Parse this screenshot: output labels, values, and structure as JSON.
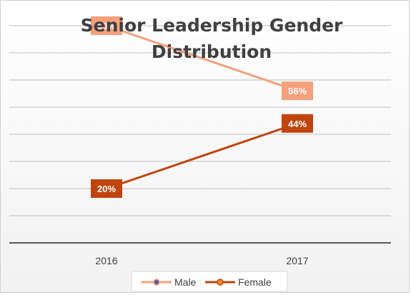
{
  "chart_data": {
    "type": "line",
    "title": "Senior Leadership Gender Distribution",
    "title_lines": [
      "Senior Leadership Gender",
      "Distribution"
    ],
    "categories": [
      "2016",
      "2017"
    ],
    "ylim": [
      0,
      90
    ],
    "grid": true,
    "legend_position": "bottom",
    "series": [
      {
        "name": "Male",
        "values": [
          80,
          56
        ],
        "labels": [
          "80%",
          "56%"
        ],
        "color": "#F4A07A",
        "marker_fill": "#5B5EA6"
      },
      {
        "name": "Female",
        "values": [
          20,
          44
        ],
        "labels": [
          "20%",
          "44%"
        ],
        "color": "#C1440E",
        "marker_fill": "#F28C28"
      }
    ]
  }
}
